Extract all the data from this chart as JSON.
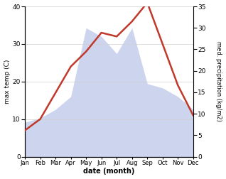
{
  "months": [
    "Jan",
    "Feb",
    "Mar",
    "Apr",
    "May",
    "Jun",
    "Jul",
    "Aug",
    "Sep",
    "Oct",
    "Nov",
    "Dec"
  ],
  "temperature": [
    7,
    10,
    17,
    24,
    28,
    33,
    32,
    36,
    41,
    30,
    19,
    11
  ],
  "precipitation": [
    8,
    9,
    11,
    14,
    30,
    28,
    24,
    30,
    17,
    16,
    14,
    11
  ],
  "temp_color": "#c0392b",
  "precip_fill_color": "#b8c4e8",
  "temp_ylim": [
    0,
    40
  ],
  "precip_ylim": [
    0,
    35
  ],
  "temp_yticks": [
    0,
    10,
    20,
    30,
    40
  ],
  "precip_yticks": [
    0,
    5,
    10,
    15,
    20,
    25,
    30,
    35
  ],
  "xlabel": "date (month)",
  "ylabel_left": "max temp (C)",
  "ylabel_right": "med. precipitation (kg/m2)",
  "line_width": 1.8,
  "bg_color": "#ffffff",
  "grid_color": "#d0d0d0"
}
